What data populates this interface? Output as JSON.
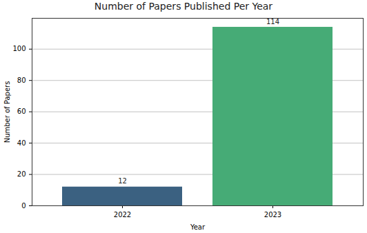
{
  "chart_data": {
    "type": "bar",
    "title": "Number of Papers Published Per Year",
    "x_label": "Year",
    "y_label": "Number of Papers",
    "categories": [
      "2022",
      "2023"
    ],
    "values": [
      12,
      114
    ],
    "colors": [
      "#3b6181",
      "#46ab76"
    ],
    "ylim": [
      0,
      119.7
    ],
    "yticks": [
      0,
      20,
      40,
      60,
      80,
      100
    ],
    "grid": true,
    "data_labels": true
  }
}
